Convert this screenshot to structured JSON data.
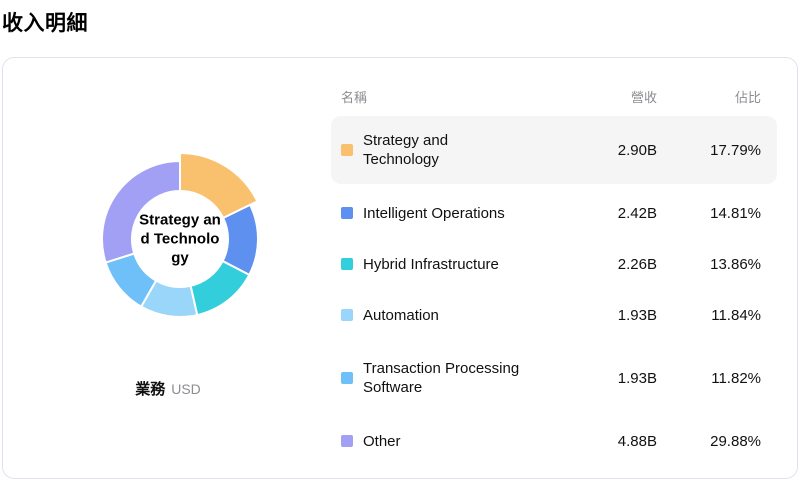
{
  "page": {
    "title": "收入明細"
  },
  "chart_data": {
    "type": "donut",
    "title": "收入明細",
    "center_label": "Strategy and Technology",
    "caption": {
      "label": "業務",
      "unit": "USD"
    },
    "legend_position": "right-table",
    "total_percent": 100,
    "series": [
      {
        "name": "Strategy and Technology",
        "revenue": "2.90B",
        "percent": 17.79,
        "percent_label": "17.79%",
        "color": "#f9c06e",
        "selected": true
      },
      {
        "name": "Intelligent Operations",
        "revenue": "2.42B",
        "percent": 14.81,
        "percent_label": "14.81%",
        "color": "#5e90f0",
        "selected": false
      },
      {
        "name": "Hybrid Infrastructure",
        "revenue": "2.26B",
        "percent": 13.86,
        "percent_label": "13.86%",
        "color": "#33cedb",
        "selected": false
      },
      {
        "name": "Automation",
        "revenue": "1.93B",
        "percent": 11.84,
        "percent_label": "11.84%",
        "color": "#9ad5fa",
        "selected": false
      },
      {
        "name": "Transaction Processing Software",
        "revenue": "1.93B",
        "percent": 11.82,
        "percent_label": "11.82%",
        "color": "#6fc0f8",
        "selected": false
      },
      {
        "name": "Other",
        "revenue": "4.88B",
        "percent": 29.88,
        "percent_label": "29.88%",
        "color": "#a2a0f4",
        "selected": false
      }
    ]
  },
  "table": {
    "columns": {
      "name": "名稱",
      "revenue": "營收",
      "percent": "佔比"
    }
  }
}
